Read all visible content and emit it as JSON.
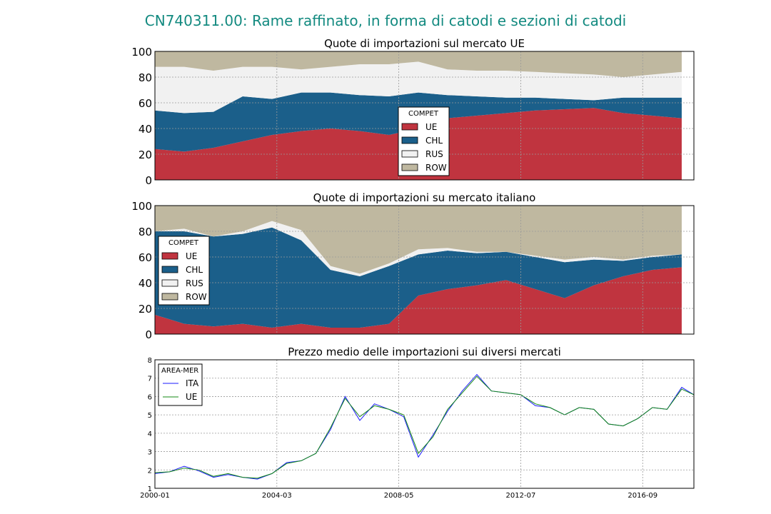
{
  "figure_title": "CN740311.00: Rame raffinato, in forma di catodi e sezioni di catodi",
  "colors": {
    "UE": "#c0343f",
    "CHL": "#1b5f8a",
    "RUS": "#f1f1f1",
    "ROW": "#bfb8a0",
    "ITA_line": "#1a1aff",
    "UE_line": "#138a13",
    "title": "#138a80"
  },
  "chart_data": [
    {
      "type": "area",
      "title": "Quote di importazioni sul mercato UE",
      "stacked": true,
      "ylim": [
        0,
        100
      ],
      "yticks": [
        "0",
        "20",
        "40",
        "60",
        "80",
        "100"
      ],
      "legend": {
        "title": "COMPET",
        "placement": "center",
        "entries": [
          "UE",
          "CHL",
          "RUS",
          "ROW"
        ]
      },
      "x": [
        "2000-01",
        "2001-01",
        "2002-01",
        "2003-01",
        "2004-01",
        "2005-01",
        "2006-01",
        "2007-01",
        "2008-01",
        "2009-01",
        "2010-01",
        "2011-01",
        "2012-01",
        "2013-01",
        "2014-01",
        "2015-01",
        "2016-01",
        "2017-01",
        "2018-01"
      ],
      "series": [
        {
          "name": "UE",
          "values": [
            24,
            22,
            25,
            30,
            35,
            38,
            40,
            38,
            35,
            40,
            48,
            50,
            52,
            54,
            55,
            56,
            52,
            50,
            48
          ]
        },
        {
          "name": "CHL",
          "values": [
            30,
            30,
            28,
            35,
            28,
            30,
            28,
            28,
            30,
            28,
            18,
            15,
            12,
            10,
            8,
            6,
            12,
            14,
            16
          ]
        },
        {
          "name": "RUS",
          "values": [
            34,
            36,
            32,
            23,
            25,
            18,
            20,
            24,
            25,
            24,
            20,
            20,
            21,
            20,
            20,
            20,
            16,
            18,
            20
          ]
        },
        {
          "name": "ROW",
          "values": [
            12,
            12,
            15,
            12,
            12,
            14,
            12,
            10,
            10,
            8,
            14,
            15,
            15,
            16,
            17,
            18,
            20,
            18,
            16
          ]
        }
      ]
    },
    {
      "type": "area",
      "title": "Quote di importazioni su mercato italiano",
      "stacked": true,
      "ylim": [
        0,
        100
      ],
      "yticks": [
        "0",
        "20",
        "40",
        "60",
        "80",
        "100"
      ],
      "legend": {
        "title": "COMPET",
        "placement": "center-left",
        "entries": [
          "UE",
          "CHL",
          "RUS",
          "ROW"
        ]
      },
      "x": [
        "2000-01",
        "2001-01",
        "2002-01",
        "2003-01",
        "2004-01",
        "2005-01",
        "2006-01",
        "2007-01",
        "2008-01",
        "2009-01",
        "2010-01",
        "2011-01",
        "2012-01",
        "2013-01",
        "2014-01",
        "2015-01",
        "2016-01",
        "2017-01",
        "2018-01"
      ],
      "series": [
        {
          "name": "UE",
          "values": [
            15,
            8,
            6,
            8,
            5,
            8,
            5,
            5,
            8,
            30,
            35,
            38,
            42,
            35,
            28,
            38,
            45,
            50,
            52
          ]
        },
        {
          "name": "CHL",
          "values": [
            65,
            72,
            70,
            70,
            78,
            65,
            45,
            40,
            45,
            32,
            30,
            25,
            22,
            25,
            28,
            20,
            12,
            10,
            10
          ]
        },
        {
          "name": "RUS",
          "values": [
            0,
            2,
            0,
            2,
            5,
            8,
            3,
            2,
            2,
            4,
            2,
            1,
            0,
            1,
            2,
            2,
            1,
            1,
            0
          ]
        },
        {
          "name": "ROW",
          "values": [
            20,
            18,
            24,
            20,
            12,
            19,
            47,
            53,
            45,
            34,
            33,
            36,
            36,
            39,
            42,
            40,
            42,
            39,
            38
          ]
        }
      ]
    },
    {
      "type": "line",
      "title": "Prezzo medio delle importazioni sui diversi mercati",
      "ylim": [
        1,
        8
      ],
      "yticks": [
        "1",
        "2",
        "3",
        "4",
        "5",
        "6",
        "7",
        "8"
      ],
      "xticks": [
        "2000-01",
        "2004-03",
        "2008-05",
        "2012-07",
        "2016-09"
      ],
      "legend": {
        "title": "AREA-MER",
        "placement": "top-left",
        "entries": [
          "ITA",
          "UE"
        ]
      },
      "x": [
        "2000-01",
        "2000-07",
        "2001-01",
        "2001-07",
        "2002-01",
        "2002-07",
        "2003-01",
        "2003-07",
        "2004-01",
        "2004-07",
        "2005-01",
        "2005-07",
        "2006-01",
        "2006-07",
        "2007-01",
        "2007-07",
        "2008-01",
        "2008-07",
        "2009-01",
        "2009-07",
        "2010-01",
        "2010-07",
        "2011-01",
        "2011-07",
        "2012-01",
        "2012-07",
        "2013-01",
        "2013-07",
        "2014-01",
        "2014-07",
        "2015-01",
        "2015-07",
        "2016-01",
        "2016-07",
        "2017-01",
        "2017-07",
        "2018-01",
        "2018-06"
      ],
      "series": [
        {
          "name": "ITA",
          "values": [
            1.8,
            1.9,
            2.2,
            1.95,
            1.6,
            1.75,
            1.6,
            1.5,
            1.8,
            2.4,
            2.5,
            2.9,
            4.2,
            6.0,
            4.7,
            5.6,
            5.3,
            4.9,
            2.7,
            3.9,
            5.2,
            6.3,
            7.2,
            6.3,
            6.2,
            6.1,
            5.5,
            5.4,
            5.0,
            5.4,
            5.3,
            4.5,
            4.4,
            4.8,
            5.4,
            5.3,
            6.5,
            6.1
          ]
        },
        {
          "name": "UE",
          "values": [
            1.85,
            1.9,
            2.1,
            2.0,
            1.65,
            1.8,
            1.6,
            1.55,
            1.8,
            2.35,
            2.5,
            2.9,
            4.3,
            5.9,
            4.9,
            5.5,
            5.3,
            5.0,
            2.9,
            3.8,
            5.3,
            6.2,
            7.1,
            6.3,
            6.2,
            6.1,
            5.6,
            5.4,
            5.0,
            5.4,
            5.3,
            4.5,
            4.4,
            4.8,
            5.4,
            5.3,
            6.4,
            6.1
          ]
        }
      ]
    }
  ]
}
